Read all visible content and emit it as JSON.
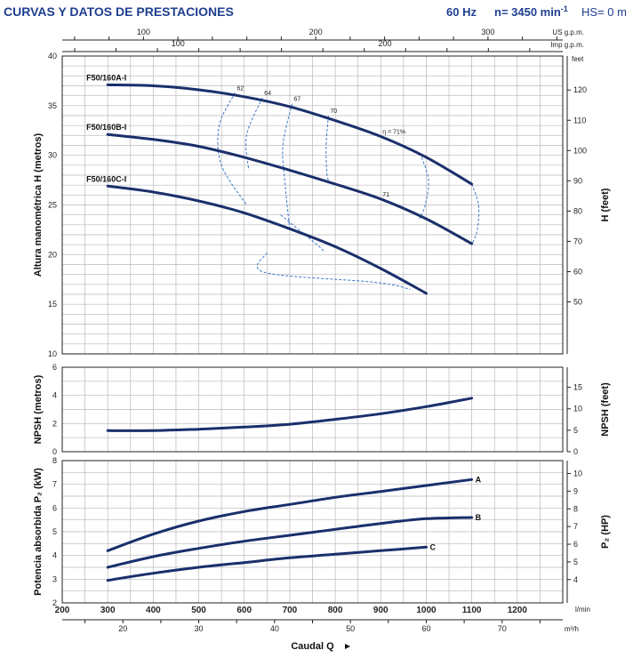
{
  "header": {
    "title": "CURVAS Y DATOS DE PRESTACIONES",
    "freq": "60 Hz",
    "speed": "n= 3450 min",
    "speed_sup": "-1",
    "hs": "HS= 0 m"
  },
  "colors": {
    "curve": "#1a2f6b",
    "eff": "#3a78c8",
    "title": "#1f3f8f",
    "grid": "#b8b8b8"
  },
  "chart_data": {
    "type": "line",
    "x_lmin": {
      "range": [
        200,
        1300
      ],
      "ticks": [
        200,
        300,
        400,
        500,
        600,
        700,
        800,
        900,
        1000,
        1100,
        1200
      ],
      "unit": "l/min"
    },
    "x_m3h": {
      "ticks": [
        20,
        30,
        40,
        50,
        60,
        70
      ],
      "unit": "m³/h"
    },
    "x_usgpm": {
      "ticks": [
        100,
        200,
        300
      ],
      "label": "US g.p.m."
    },
    "x_impgpm": {
      "ticks": [
        100,
        200
      ],
      "label": "Imp g.p.m."
    },
    "xlabel": "Caudal  Q",
    "head": {
      "ylabel": "Altura manométrica H  (metros)",
      "ylabel_right": "H  (feet)",
      "ylim": [
        10,
        40
      ],
      "ticks": [
        10,
        15,
        20,
        25,
        30,
        35,
        40
      ],
      "right_ticks": [
        50,
        60,
        70,
        80,
        90,
        100,
        110,
        120
      ],
      "right_unit": "feet",
      "series": [
        {
          "name": "F50/160A-I",
          "x": [
            300,
            400,
            500,
            600,
            700,
            800,
            900,
            1000,
            1100
          ],
          "values": [
            37.1,
            37.0,
            36.6,
            35.9,
            34.9,
            33.5,
            31.9,
            29.8,
            27.1
          ]
        },
        {
          "name": "F50/160B-I",
          "x": [
            300,
            400,
            500,
            600,
            700,
            800,
            900,
            1000,
            1100
          ],
          "values": [
            32.1,
            31.6,
            30.9,
            29.8,
            28.5,
            27.1,
            25.6,
            23.6,
            21.1
          ]
        },
        {
          "name": "F50/160C-I",
          "x": [
            300,
            400,
            500,
            600,
            700,
            800,
            900,
            1000
          ],
          "values": [
            26.9,
            26.3,
            25.4,
            24.2,
            22.6,
            20.8,
            18.6,
            16.1
          ]
        }
      ],
      "efficiency": [
        {
          "label": "62",
          "x": [
            580,
            545,
            550,
            605,
            650,
            645,
            890,
            965
          ],
          "y": [
            36.3,
            33,
            29,
            25,
            20.2,
            18.2,
            17.2,
            16.5
          ]
        },
        {
          "label": "64",
          "x": [
            640,
            605,
            610,
            680,
            760,
            775
          ],
          "y": [
            35.8,
            32,
            28.5,
            24,
            21,
            20.3
          ]
        },
        {
          "label": "67",
          "x": [
            705,
            685,
            690,
            700,
            1100,
            1115,
            1112,
            1100
          ],
          "y": [
            35.2,
            31,
            27,
            22.5,
            27.1,
            25,
            22.5,
            21
          ]
        },
        {
          "label": "70",
          "x": [
            785,
            780,
            782,
            790,
            990,
            1005,
            998,
            985
          ],
          "y": [
            34.0,
            31,
            28,
            27.2,
            29.8,
            27.5,
            25,
            23.6
          ]
        },
        {
          "label": "η = 71%",
          "x": [
            900
          ],
          "y": [
            31.9
          ]
        },
        {
          "label": "71",
          "x": [
            900
          ],
          "y": [
            25.6
          ]
        }
      ]
    },
    "npsh": {
      "ylabel": "NPSH  (metros)",
      "ylabel_right": "NPSH  (feet)",
      "ylim": [
        0,
        6
      ],
      "ticks": [
        0,
        2,
        4,
        6
      ],
      "right_ticks": [
        0,
        5,
        10,
        15
      ],
      "series": [
        {
          "name": "NPSH",
          "x": [
            300,
            400,
            500,
            600,
            700,
            800,
            900,
            1000,
            1100
          ],
          "values": [
            1.5,
            1.5,
            1.6,
            1.75,
            1.95,
            2.3,
            2.7,
            3.2,
            3.8
          ]
        }
      ]
    },
    "power": {
      "ylabel": "Potencia absorbida P₂  (kW)",
      "ylabel_right": "P₂  (HP)",
      "ylim": [
        2,
        8
      ],
      "ticks": [
        2,
        3,
        4,
        5,
        6,
        7,
        8
      ],
      "right_ticks": [
        4,
        5,
        6,
        7,
        8,
        9,
        10
      ],
      "series": [
        {
          "name": "A",
          "x": [
            300,
            400,
            500,
            600,
            700,
            800,
            900,
            1000,
            1100
          ],
          "values": [
            4.2,
            4.9,
            5.45,
            5.85,
            6.15,
            6.45,
            6.7,
            6.95,
            7.2
          ]
        },
        {
          "name": "B",
          "x": [
            300,
            400,
            500,
            600,
            700,
            800,
            900,
            1000,
            1100
          ],
          "values": [
            3.5,
            3.95,
            4.3,
            4.6,
            4.85,
            5.1,
            5.35,
            5.55,
            5.6
          ]
        },
        {
          "name": "C",
          "x": [
            300,
            400,
            500,
            600,
            700,
            800,
            900,
            1000
          ],
          "values": [
            2.95,
            3.25,
            3.5,
            3.7,
            3.9,
            4.05,
            4.2,
            4.35
          ]
        }
      ]
    }
  }
}
